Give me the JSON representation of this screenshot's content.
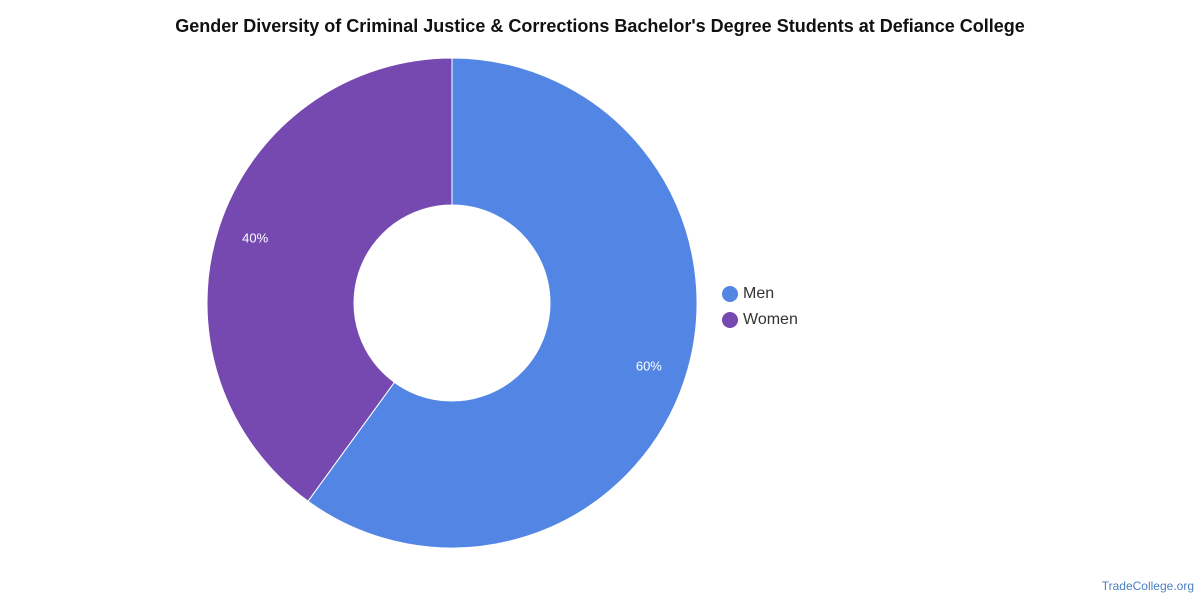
{
  "title": "Gender Diversity of Criminal Justice & Corrections Bachelor's Degree Students at Defiance College",
  "chart_data": {
    "type": "pie",
    "variant": "donut",
    "title": "Gender Diversity of Criminal Justice & Corrections Bachelor's Degree Students at Defiance College",
    "categories": [
      "Men",
      "Women"
    ],
    "values": [
      60,
      40
    ],
    "labels": [
      "60%",
      "40%"
    ],
    "colors": [
      "#5386e4",
      "#7649b0"
    ],
    "legend_position": "right"
  },
  "legend": {
    "items": [
      {
        "label": "Men",
        "color": "#5386e4"
      },
      {
        "label": "Women",
        "color": "#7649b0"
      }
    ]
  },
  "footer": {
    "source": "TradeCollege.org"
  }
}
